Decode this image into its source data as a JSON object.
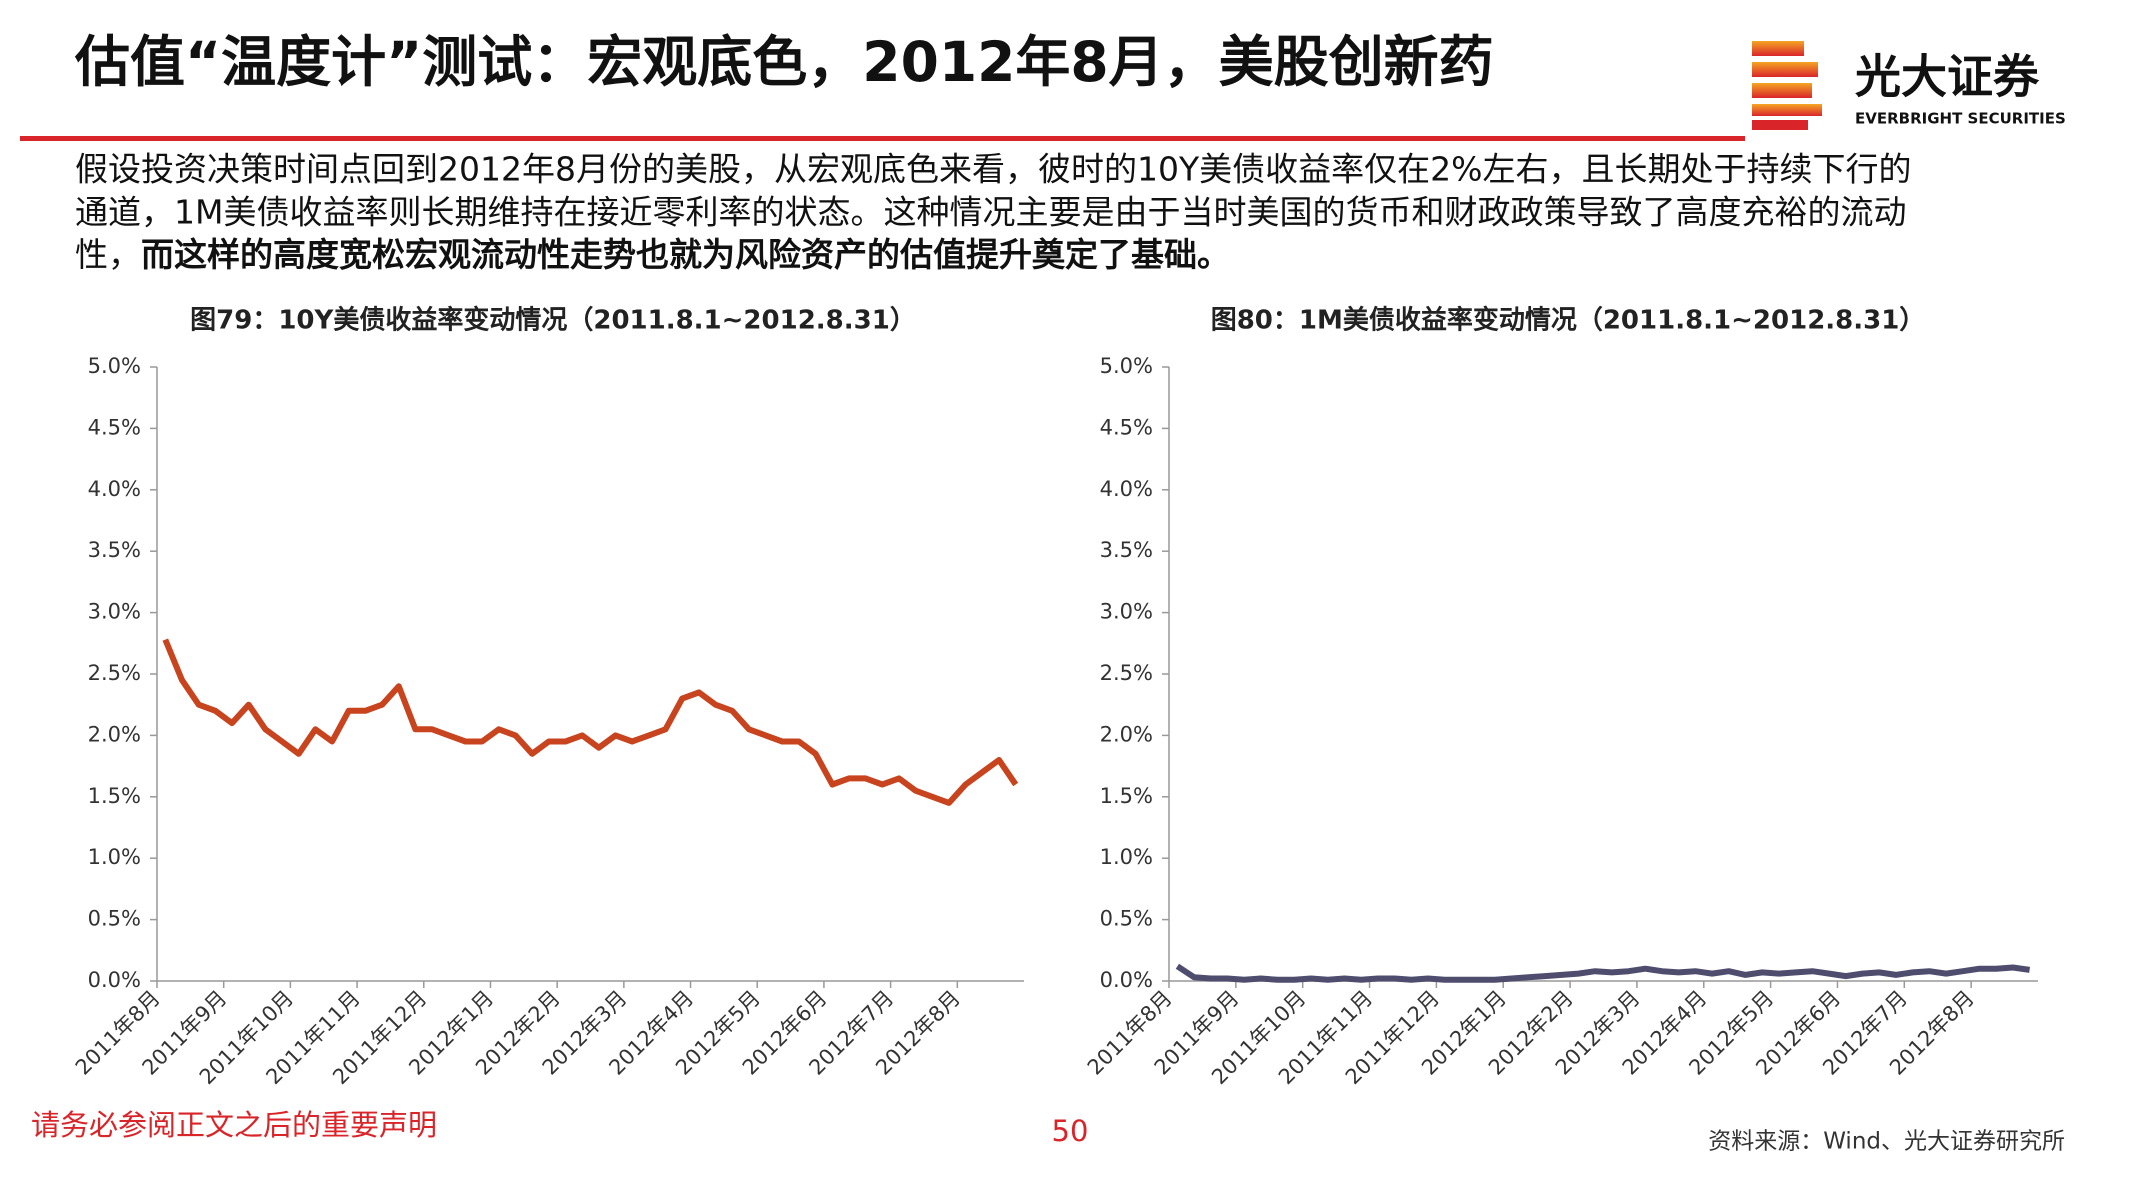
{
  "header": {
    "title": "估值“温度计”测试：宏观底色，2012年8月，美股创新药",
    "brand": "光大证券",
    "brand_en": "EVERBRIGHT SECURITIES"
  },
  "body": {
    "lines": [
      "假设投资决策时间点回到2012年8月份的美股，从宏观底色来看，彼时的10Y美债收益率仅在2%左右，且长期处于持续下行的",
      "通道，1M美债收益率则长期维持在接近零利率的状态。这种情况主要是由于当时美国的货币和财政政策导致了高度充裕的流动"
    ],
    "line3_normal": "性，",
    "line3_bold": "而这样的高度宽松宏观流动性走势也就为风险资产的估值提升奠定了基础。"
  },
  "chart_data": [
    {
      "type": "line",
      "title": "图79：10Y美债收益率变动情况（2011.8.1~2012.8.31）",
      "categories": [
        "2011年8月",
        null,
        null,
        null,
        "2011年9月",
        null,
        null,
        null,
        "2011年10月",
        null,
        null,
        null,
        "2011年11月",
        null,
        null,
        null,
        "2011年12月",
        null,
        null,
        null,
        "2012年1月",
        null,
        null,
        null,
        "2012年2月",
        null,
        null,
        null,
        "2012年3月",
        null,
        null,
        null,
        "2012年4月",
        null,
        null,
        null,
        "2012年5月",
        null,
        null,
        null,
        "2012年6月",
        null,
        null,
        null,
        "2012年7月",
        null,
        null,
        null,
        "2012年8月",
        null,
        null,
        null
      ],
      "series": [
        {
          "name": "10Y",
          "color": "#c8441e",
          "values": [
            2.78,
            2.45,
            2.25,
            2.2,
            2.1,
            2.25,
            2.05,
            1.95,
            1.85,
            2.05,
            1.95,
            2.2,
            2.2,
            2.25,
            2.4,
            2.05,
            2.05,
            2.0,
            1.95,
            1.95,
            2.05,
            2.0,
            1.85,
            1.95,
            1.95,
            2.0,
            1.9,
            2.0,
            1.95,
            2.0,
            2.05,
            2.3,
            2.35,
            2.25,
            2.2,
            2.05,
            2.0,
            1.95,
            1.95,
            1.85,
            1.6,
            1.65,
            1.65,
            1.6,
            1.65,
            1.55,
            1.5,
            1.45,
            1.6,
            1.7,
            1.8,
            1.6
          ]
        }
      ],
      "ylim": [
        0,
        5
      ],
      "yticks": [
        {
          "value": 0,
          "label": "0.0%"
        },
        {
          "value": 0.5,
          "label": "0.5%"
        },
        {
          "value": 1,
          "label": "1.0%"
        },
        {
          "value": 1.5,
          "label": "1.5%"
        },
        {
          "value": 2,
          "label": "2.0%"
        },
        {
          "value": 2.5,
          "label": "2.5%"
        },
        {
          "value": 3,
          "label": "3.0%"
        },
        {
          "value": 3.5,
          "label": "3.5%"
        },
        {
          "value": 4,
          "label": "4.0%"
        },
        {
          "value": 4.5,
          "label": "4.5%"
        },
        {
          "value": 5,
          "label": "5.0%"
        }
      ]
    },
    {
      "type": "line",
      "title": "图80：1M美债收益率变动情况（2011.8.1~2012.8.31）",
      "categories": [
        "2011年8月",
        null,
        null,
        null,
        "2011年9月",
        null,
        null,
        null,
        "2011年10月",
        null,
        null,
        null,
        "2011年11月",
        null,
        null,
        null,
        "2011年12月",
        null,
        null,
        null,
        "2012年1月",
        null,
        null,
        null,
        "2012年2月",
        null,
        null,
        null,
        "2012年3月",
        null,
        null,
        null,
        "2012年4月",
        null,
        null,
        null,
        "2012年5月",
        null,
        null,
        null,
        "2012年6月",
        null,
        null,
        null,
        "2012年7月",
        null,
        null,
        null,
        "2012年8月",
        null,
        null,
        null
      ],
      "series": [
        {
          "name": "1M",
          "color": "#4f4d6e",
          "values": [
            0.12,
            0.03,
            0.02,
            0.02,
            0.01,
            0.02,
            0.01,
            0.01,
            0.02,
            0.01,
            0.02,
            0.01,
            0.02,
            0.02,
            0.01,
            0.02,
            0.01,
            0.01,
            0.01,
            0.01,
            0.02,
            0.03,
            0.04,
            0.05,
            0.06,
            0.08,
            0.07,
            0.08,
            0.1,
            0.08,
            0.07,
            0.08,
            0.06,
            0.08,
            0.05,
            0.07,
            0.06,
            0.07,
            0.08,
            0.06,
            0.04,
            0.06,
            0.07,
            0.05,
            0.07,
            0.08,
            0.06,
            0.08,
            0.1,
            0.1,
            0.11,
            0.09
          ]
        }
      ],
      "ylim": [
        0,
        5
      ],
      "yticks": [
        {
          "value": 0,
          "label": "0.0%"
        },
        {
          "value": 0.5,
          "label": "0.5%"
        },
        {
          "value": 1,
          "label": "1.0%"
        },
        {
          "value": 1.5,
          "label": "1.5%"
        },
        {
          "value": 2,
          "label": "2.0%"
        },
        {
          "value": 2.5,
          "label": "2.5%"
        },
        {
          "value": 3,
          "label": "3.0%"
        },
        {
          "value": 3.5,
          "label": "3.5%"
        },
        {
          "value": 4,
          "label": "4.0%"
        },
        {
          "value": 4.5,
          "label": "4.5%"
        },
        {
          "value": 5,
          "label": "5.0%"
        }
      ]
    }
  ],
  "footer": {
    "disclaimer": "请务必参阅正文之后的重要声明",
    "page": "50",
    "source": "资料来源：Wind、光大证券研究所"
  }
}
